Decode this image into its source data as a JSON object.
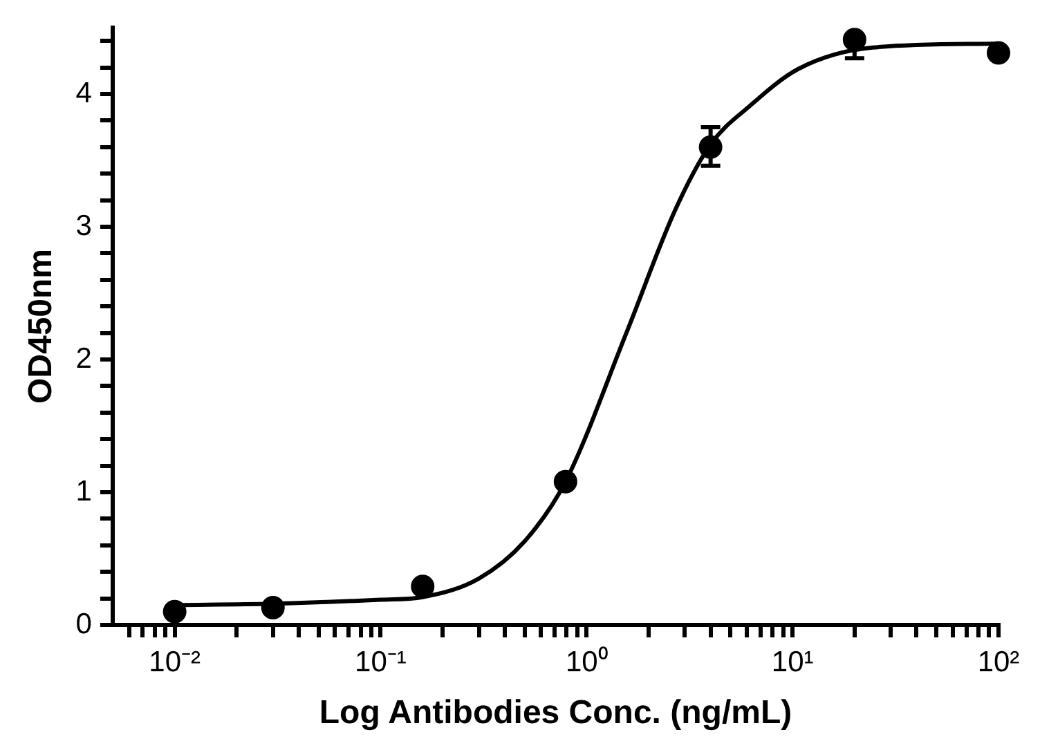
{
  "chart_data": {
    "type": "scatter",
    "xlabel": "Log Antibodies Conc. (ng/mL)",
    "ylabel": "OD450nm",
    "log": "x",
    "marker": "circle",
    "legend": false,
    "xlim": [
      0.005,
      100
    ],
    "xticks": [
      {
        "value": 0.006,
        "label": null
      },
      {
        "value": 0.007,
        "label": null
      },
      {
        "value": 0.008,
        "label": null
      },
      {
        "value": 0.009,
        "label": null
      },
      {
        "value": 0.01,
        "label": "10⁻²"
      },
      {
        "value": 0.02,
        "label": null
      },
      {
        "value": 0.03,
        "label": null
      },
      {
        "value": 0.04,
        "label": null
      },
      {
        "value": 0.05,
        "label": null
      },
      {
        "value": 0.06,
        "label": null
      },
      {
        "value": 0.07,
        "label": null
      },
      {
        "value": 0.08,
        "label": null
      },
      {
        "value": 0.09,
        "label": null
      },
      {
        "value": 0.1,
        "label": "10⁻¹"
      },
      {
        "value": 0.2,
        "label": null
      },
      {
        "value": 0.3,
        "label": null
      },
      {
        "value": 0.4,
        "label": null
      },
      {
        "value": 0.5,
        "label": null
      },
      {
        "value": 0.6,
        "label": null
      },
      {
        "value": 0.7,
        "label": null
      },
      {
        "value": 0.8,
        "label": null
      },
      {
        "value": 0.9,
        "label": null
      },
      {
        "value": 1,
        "label": "10⁰"
      },
      {
        "value": 2,
        "label": null
      },
      {
        "value": 3,
        "label": null
      },
      {
        "value": 4,
        "label": null
      },
      {
        "value": 5,
        "label": null
      },
      {
        "value": 6,
        "label": null
      },
      {
        "value": 7,
        "label": null
      },
      {
        "value": 8,
        "label": null
      },
      {
        "value": 9,
        "label": null
      },
      {
        "value": 10,
        "label": "10¹"
      },
      {
        "value": 20,
        "label": null
      },
      {
        "value": 30,
        "label": null
      },
      {
        "value": 40,
        "label": null
      },
      {
        "value": 50,
        "label": null
      },
      {
        "value": 60,
        "label": null
      },
      {
        "value": 70,
        "label": null
      },
      {
        "value": 80,
        "label": null
      },
      {
        "value": 90,
        "label": null
      },
      {
        "value": 100,
        "label": "10²"
      }
    ],
    "ylim": [
      0,
      4.5
    ],
    "yticks": [
      0,
      {
        "value": 0.2,
        "label": null
      },
      {
        "value": 0.4,
        "label": null
      },
      {
        "value": 0.6,
        "label": null
      },
      {
        "value": 0.8,
        "label": null
      },
      1,
      {
        "value": 1.2,
        "label": null
      },
      {
        "value": 1.4,
        "label": null
      },
      {
        "value": 1.6,
        "label": null
      },
      {
        "value": 1.8,
        "label": null
      },
      2,
      {
        "value": 2.2,
        "label": null
      },
      {
        "value": 2.4,
        "label": null
      },
      {
        "value": 2.6,
        "label": null
      },
      {
        "value": 2.8,
        "label": null
      },
      3,
      {
        "value": 3.2,
        "label": null
      },
      {
        "value": 3.4,
        "label": null
      },
      {
        "value": 3.6,
        "label": null
      },
      {
        "value": 3.8,
        "label": null
      },
      4,
      {
        "value": 4.2,
        "label": null
      },
      {
        "value": 4.4,
        "label": null
      }
    ],
    "series": [
      {
        "type": "line",
        "color": "#000000",
        "marker": "none",
        "x": [
          0.01,
          0.03,
          0.1,
          0.16,
          0.3,
          0.5,
          0.79,
          1.56,
          2.7,
          4,
          6.2,
          10.7,
          24.5,
          100
        ],
        "values": [
          0.15,
          0.16,
          0.19,
          0.21,
          0.35,
          0.63,
          1.08,
          2.2,
          3.13,
          3.62,
          3.91,
          4.19,
          4.35,
          4.38
        ]
      },
      {
        "type": "scatter",
        "color": "#000000",
        "x": [
          0.01,
          0.03,
          0.16,
          0.79,
          4,
          20,
          100
        ],
        "values": [
          0.1,
          0.13,
          0.29,
          1.08,
          3.6,
          4.41,
          4.31
        ],
        "errors": [
          null,
          null,
          null,
          null,
          [
            3.46,
            3.75
          ],
          [
            4.27,
            4.41
          ],
          null
        ]
      }
    ]
  }
}
